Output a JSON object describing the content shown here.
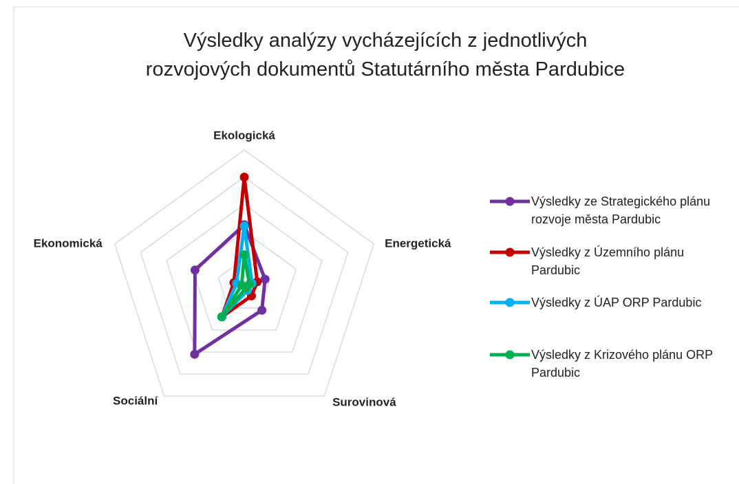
{
  "chart_data": {
    "type": "radar",
    "title": [
      "Výsledky analýzy vycházejících z jednotlivých",
      "rozvojových dokumentů Statutárního města Pardubice"
    ],
    "categories": [
      "Ekologická",
      "Energetická",
      "Surovinová",
      "Sociální",
      "Ekonomická"
    ],
    "series": [
      {
        "name": "Výsledky ze Strategického plánu rozvoje města Pardubic",
        "color": "#7030a0",
        "values": [
          2.25,
          0.8,
          1.1,
          3.1,
          1.9
        ]
      },
      {
        "name": "Výsledky z Územního plánu Pardubic",
        "color": "#c00000",
        "values": [
          4.0,
          0.5,
          0.45,
          1.4,
          0.4
        ]
      },
      {
        "name": "Výsledky z ÚAP ORP Pardubic",
        "color": "#00b0f0",
        "values": [
          2.2,
          0.3,
          0.2,
          1.4,
          0.3
        ]
      },
      {
        "name": "Výsledky z Krizového plánu ORP Pardubic",
        "color": "#00b050",
        "values": [
          1.15,
          0.2,
          0.1,
          1.4,
          0.1
        ]
      }
    ],
    "rlim": [
      0,
      5
    ],
    "rticks": [
      1,
      2,
      3,
      4,
      5
    ],
    "grid": true,
    "legend": "right"
  }
}
